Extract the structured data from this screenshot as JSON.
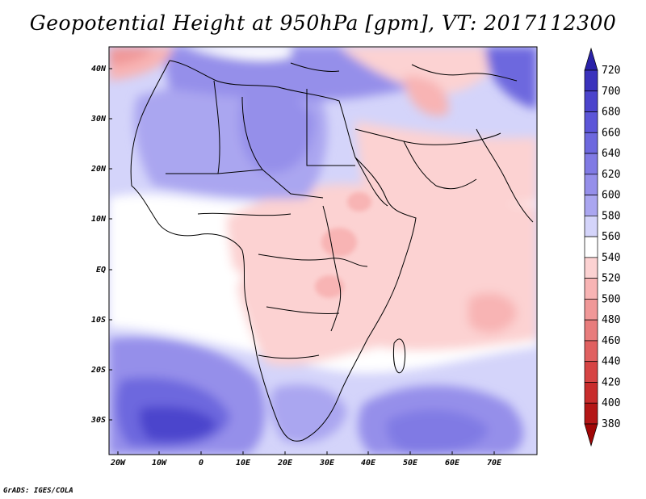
{
  "title": "Geopotential Height at 950hPa [gpm], VT: 2017112300",
  "footer": "GrADS: IGES/COLA",
  "map": {
    "lat_labels": [
      "40N",
      "30N",
      "20N",
      "10N",
      "EQ",
      "10S",
      "20S",
      "30S"
    ],
    "lon_labels": [
      "20W",
      "10W",
      "0",
      "10E",
      "20E",
      "30E",
      "40E",
      "50E",
      "60E",
      "70E"
    ],
    "lat_range": [
      -36,
      45
    ],
    "lon_range": [
      -23,
      80
    ]
  },
  "colorbar": {
    "levels": [
      "720",
      "700",
      "680",
      "660",
      "640",
      "620",
      "600",
      "580",
      "560",
      "540",
      "520",
      "500",
      "480",
      "460",
      "440",
      "420",
      "400",
      "380"
    ],
    "colors": [
      "#2a22a8",
      "#3a32bc",
      "#4b44cc",
      "#5c56d8",
      "#6d68de",
      "#807ae4",
      "#958fea",
      "#aaa6f0",
      "#d4d4fa",
      "#ffffff",
      "#fcd2d2",
      "#f8b4b4",
      "#f09898",
      "#e87c7c",
      "#e06060",
      "#d64444",
      "#c82c2c",
      "#b41616",
      "#a00606"
    ]
  }
}
